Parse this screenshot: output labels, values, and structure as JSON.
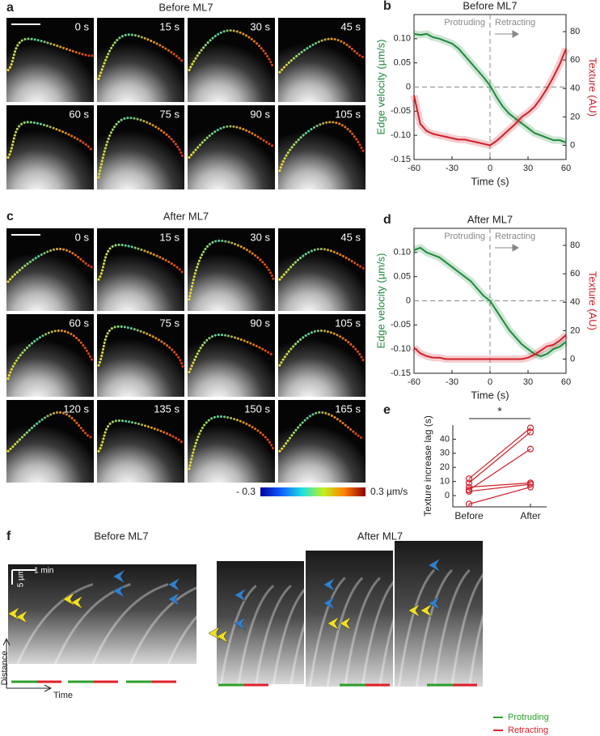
{
  "panels": {
    "a": {
      "label": "a",
      "title": "Before ML7",
      "times": [
        "0 s",
        "15 s",
        "30 s",
        "45 s",
        "60 s",
        "75 s",
        "90 s",
        "105 s"
      ]
    },
    "c": {
      "label": "c",
      "title": "After ML7",
      "times": [
        "0 s",
        "15 s",
        "30 s",
        "45 s",
        "60 s",
        "75 s",
        "90 s",
        "105 s",
        "120 s",
        "135 s",
        "150 s",
        "165 s"
      ],
      "colorbar": {
        "min_label": "- 0.3",
        "max_label": "0.3 µm/s"
      }
    },
    "f": {
      "label": "f",
      "before_title": "Before ML7",
      "after_title": "After ML7",
      "time_scale": "1 min",
      "distance_scale": "5 µm",
      "y_axis": "Distance",
      "x_axis": "Time",
      "legend": [
        {
          "name": "Protruding",
          "color": "#2ca02c"
        },
        {
          "name": "Retracting",
          "color": "#e0202a"
        }
      ]
    }
  },
  "chart_data": [
    {
      "type": "dual-line",
      "label": "b",
      "title": "Before ML7",
      "xlabel": "Time (s)",
      "ylabel": "Edge velocity (µm/s)",
      "y2label": "Texture (AU)",
      "annotations": [
        "Protruding",
        "Retracting"
      ],
      "x": [
        -60,
        -55,
        -50,
        -45,
        -40,
        -35,
        -30,
        -25,
        -20,
        -15,
        -10,
        -5,
        0,
        5,
        10,
        15,
        20,
        25,
        30,
        35,
        40,
        45,
        50,
        55,
        60
      ],
      "xlim": [
        -60,
        60
      ],
      "xticks": [
        -60,
        -30,
        0,
        30,
        60
      ],
      "ylim": [
        -0.15,
        0.15
      ],
      "yticks": [
        {
          "value": -0.15,
          "label": "-0.15"
        },
        {
          "value": -0.1,
          "label": "-0.10"
        },
        -0.05,
        0,
        0.05,
        {
          "value": 0.1,
          "label": "0.10"
        }
      ],
      "y2lim": [
        -10,
        92
      ],
      "y2ticks": [
        0,
        20,
        40,
        60,
        80
      ],
      "hline": 0,
      "vline": 0,
      "series": [
        {
          "color": "#1e8a3c",
          "values": [
            0.11,
            0.108,
            0.11,
            0.103,
            0.1,
            0.095,
            0.09,
            0.08,
            0.065,
            0.05,
            0.035,
            0.02,
            0.003,
            -0.02,
            -0.04,
            -0.055,
            -0.065,
            -0.075,
            -0.085,
            -0.095,
            -0.1,
            -0.105,
            -0.11,
            -0.11,
            -0.115
          ]
        },
        {
          "color": "#d0202a",
          "axis": "y2",
          "values": [
            35,
            15,
            10,
            8,
            7,
            6,
            5,
            4,
            4,
            3,
            2,
            1,
            0,
            3,
            7,
            11,
            15,
            20,
            23,
            27,
            33,
            40,
            48,
            57,
            68
          ]
        }
      ]
    },
    {
      "type": "dual-line",
      "label": "d",
      "title": "After ML7",
      "xlabel": "Time (s)",
      "ylabel": "Edge velocity (µm/s)",
      "y2label": "Texture (AU)",
      "annotations": [
        "Protruding",
        "Retracting"
      ],
      "x": [
        -60,
        -55,
        -50,
        -45,
        -40,
        -35,
        -30,
        -25,
        -20,
        -15,
        -10,
        -5,
        0,
        5,
        10,
        15,
        20,
        25,
        30,
        35,
        40,
        45,
        50,
        55,
        60
      ],
      "xlim": [
        -60,
        60
      ],
      "xticks": [
        -60,
        -30,
        0,
        30,
        60
      ],
      "ylim": [
        -0.15,
        0.15
      ],
      "yticks": [
        {
          "value": -0.15,
          "label": "-0.15"
        },
        {
          "value": -0.1,
          "label": "-0.10"
        },
        -0.05,
        0,
        0.05,
        {
          "value": 0.1,
          "label": "0.10"
        }
      ],
      "y2lim": [
        -10,
        92
      ],
      "y2ticks": [
        0,
        20,
        40,
        60,
        80
      ],
      "hline": 0,
      "vline": 0,
      "series": [
        {
          "color": "#1e8a3c",
          "values": [
            0.105,
            0.11,
            0.1,
            0.095,
            0.09,
            0.08,
            0.07,
            0.06,
            0.05,
            0.04,
            0.025,
            0.01,
            0,
            -0.02,
            -0.04,
            -0.06,
            -0.075,
            -0.09,
            -0.1,
            -0.11,
            -0.115,
            -0.11,
            -0.1,
            -0.095,
            -0.085
          ]
        },
        {
          "color": "#d0202a",
          "axis": "y2",
          "values": [
            8,
            4,
            2,
            1,
            1,
            0,
            0,
            0,
            0,
            0,
            0,
            0,
            0,
            0,
            0,
            0,
            0,
            0,
            1,
            3,
            6,
            9,
            10,
            13,
            17
          ]
        }
      ]
    },
    {
      "type": "paired",
      "label": "e",
      "ylabel": "Texture increase lag (s)",
      "annotation": "*",
      "categories": [
        "Before",
        "After"
      ],
      "ylim": [
        -8,
        50
      ],
      "yticks": [
        0,
        10,
        20,
        30,
        40
      ],
      "series": [
        {
          "color": "#d0202a",
          "values": [
            12,
            48
          ]
        },
        {
          "color": "#d0202a",
          "values": [
            9,
            45
          ]
        },
        {
          "color": "#d0202a",
          "values": [
            4,
            33
          ]
        },
        {
          "color": "#d0202a",
          "values": [
            6,
            9
          ]
        },
        {
          "color": "#d0202a",
          "values": [
            3,
            8
          ]
        },
        {
          "color": "#d0202a",
          "values": [
            -6,
            6
          ]
        }
      ]
    }
  ]
}
